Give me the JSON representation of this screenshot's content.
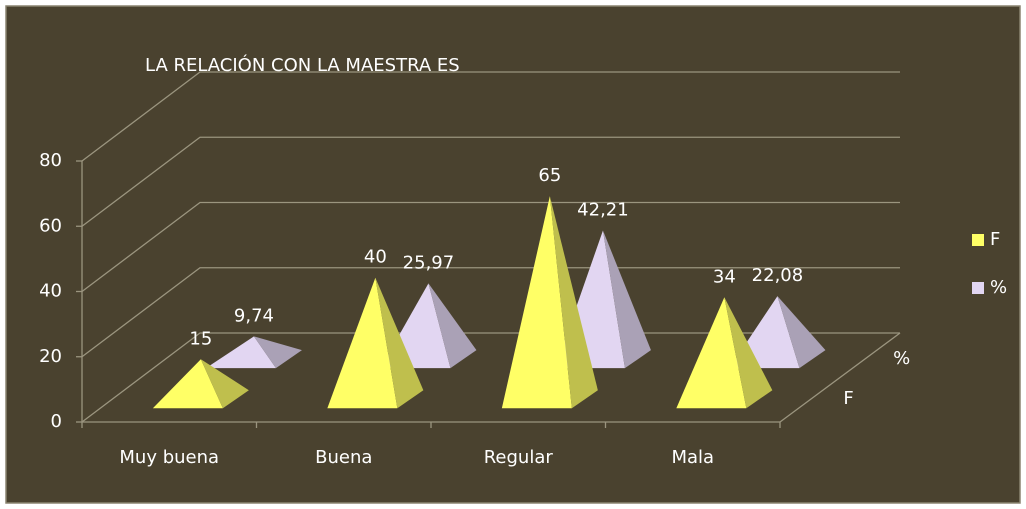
{
  "chart_data": {
    "type": "pyramid3d",
    "title": "LA RELACIÓN CON LA MAESTRA ES",
    "categories": [
      "Muy buena",
      "Buena",
      "Regular",
      "Mala"
    ],
    "series": [
      {
        "name": "F",
        "color": "#ffff66",
        "values": [
          15,
          40,
          65,
          34
        ]
      },
      {
        "name": "%",
        "color": "#e2d6f2",
        "values": [
          9.74,
          25.97,
          42.21,
          22.08
        ],
        "value_labels": [
          "9,74",
          "25,97",
          "42,21",
          "22,08"
        ]
      }
    ],
    "ylim": [
      0,
      80
    ],
    "yticks": [
      0,
      20,
      40,
      60,
      80
    ],
    "grid": true,
    "legend": "right"
  }
}
